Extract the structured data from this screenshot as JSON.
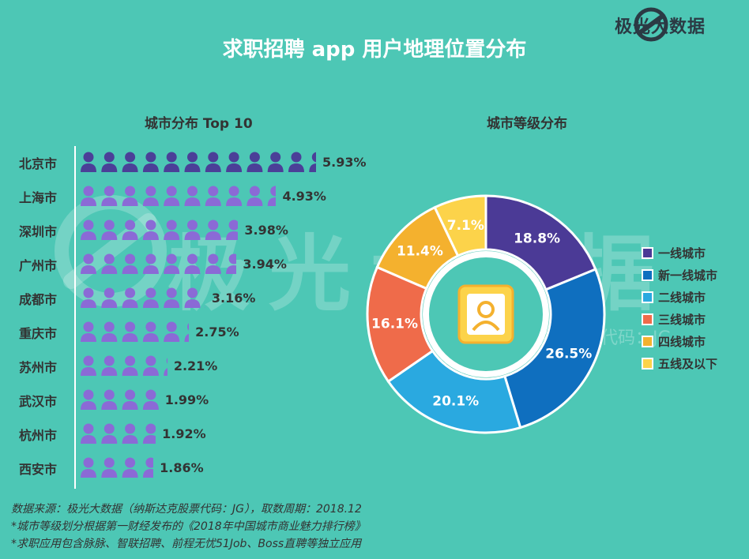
{
  "title": "求职招聘 app 用户地理位置分布",
  "brand": "极光大数据",
  "watermark": {
    "main": "极光大数据",
    "sub": "斯达克股票代码：JG"
  },
  "colors": {
    "background": "#4dc7b5",
    "person_dark": "#4b3f98",
    "person_light": "#8b6ad6"
  },
  "chart_data": [
    {
      "type": "bar",
      "title": "城市分布 Top 10",
      "categories": [
        "北京市",
        "上海市",
        "深圳市",
        "广州市",
        "成都市",
        "重庆市",
        "苏州市",
        "武汉市",
        "杭州市",
        "西安市"
      ],
      "values": [
        5.93,
        4.93,
        3.98,
        3.94,
        3.16,
        2.75,
        2.21,
        1.99,
        1.92,
        1.86
      ],
      "labels": [
        "5.93%",
        "4.93%",
        "3.98%",
        "3.94%",
        "3.16%",
        "2.75%",
        "2.21%",
        "1.99%",
        "1.92%",
        "1.86%"
      ],
      "unit": "%"
    },
    {
      "type": "pie",
      "title": "城市等级分布",
      "categories": [
        "一线城市",
        "新一线城市",
        "二线城市",
        "三线城市",
        "四线城市",
        "五线及以下"
      ],
      "values": [
        18.8,
        26.5,
        20.1,
        16.1,
        11.4,
        7.1
      ],
      "labels": [
        "18.8%",
        "26.5%",
        "20.1%",
        "16.1%",
        "11.4%",
        "7.1%"
      ],
      "colors": [
        "#4b3a96",
        "#0f6fbf",
        "#2aa9e0",
        "#ef6b4a",
        "#f4b12e",
        "#fcd34a"
      ],
      "legend": "right"
    }
  ],
  "footer": [
    "数据来源：极光大数据（纳斯达克股票代码：JG），取数周期：2018.12",
    "*城市等级划分根据第一财经发布的《2018年中国城市商业魅力排行榜》",
    "*求职应用包含脉脉、智联招聘、前程无忧51Job、Boss直聘等独立应用"
  ]
}
